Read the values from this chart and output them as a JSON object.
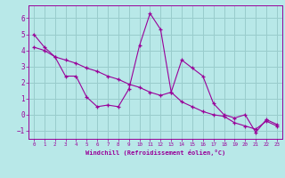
{
  "line1_x": [
    0,
    1,
    2,
    3,
    4,
    5,
    6,
    7,
    8,
    9,
    10,
    11,
    12,
    13,
    14,
    15,
    16,
    17,
    18,
    19,
    20,
    21,
    22,
    23
  ],
  "line1_y": [
    5.0,
    4.2,
    3.6,
    2.4,
    2.4,
    1.1,
    0.5,
    0.6,
    0.5,
    1.6,
    4.3,
    6.3,
    5.3,
    1.4,
    3.4,
    2.9,
    2.4,
    0.7,
    0.0,
    -0.2,
    0.0,
    -1.1,
    -0.3,
    -0.6
  ],
  "line2_x": [
    0,
    1,
    2,
    3,
    4,
    5,
    6,
    7,
    8,
    9,
    10,
    11,
    12,
    13,
    14,
    15,
    16,
    17,
    18,
    19,
    20,
    21,
    22,
    23
  ],
  "line2_y": [
    4.2,
    4.0,
    3.6,
    3.4,
    3.2,
    2.9,
    2.7,
    2.4,
    2.2,
    1.9,
    1.7,
    1.4,
    1.2,
    1.4,
    0.8,
    0.5,
    0.2,
    0.0,
    -0.1,
    -0.5,
    -0.7,
    -0.9,
    -0.4,
    -0.7
  ],
  "line_color": "#990099",
  "bg_color": "#b8e8e8",
  "grid_color": "#99cccc",
  "xlabel": "Windchill (Refroidissement éolien,°C)",
  "xlim": [
    -0.5,
    23.5
  ],
  "ylim": [
    -1.5,
    6.8
  ],
  "yticks": [
    -1,
    0,
    1,
    2,
    3,
    4,
    5,
    6
  ],
  "xticks": [
    0,
    1,
    2,
    3,
    4,
    5,
    6,
    7,
    8,
    9,
    10,
    11,
    12,
    13,
    14,
    15,
    16,
    17,
    18,
    19,
    20,
    21,
    22,
    23
  ]
}
